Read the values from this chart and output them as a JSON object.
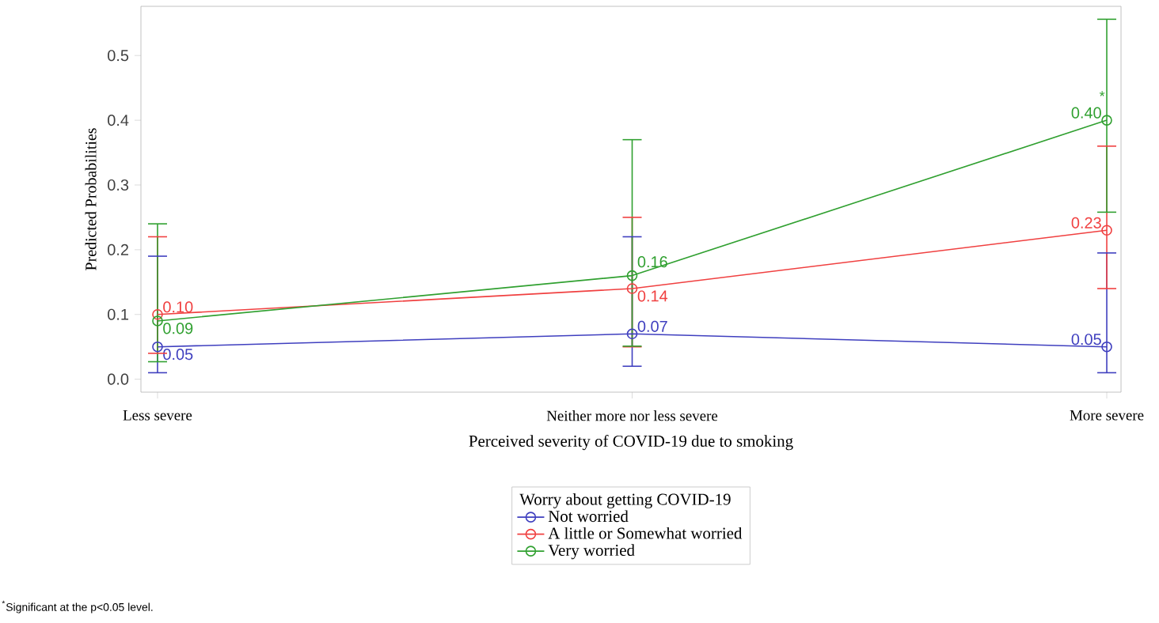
{
  "chart_data": {
    "type": "line",
    "categories": [
      "Less severe",
      "Neither more nor less severe",
      "More severe"
    ],
    "xlabel": "Perceived severity of COVID-19 due to smoking",
    "ylabel": "Predicted Probabilities",
    "legend_title": "Worry about getting COVID-19",
    "series": [
      {
        "name": "Not worried",
        "color": "#3f3fbf",
        "values": [
          0.05,
          0.07,
          0.05
        ],
        "value_labels": [
          "0.05",
          "0.07",
          "0.05"
        ],
        "errors": [
          [
            0.01,
            0.19
          ],
          [
            0.02,
            0.22
          ],
          [
            0.01,
            0.195
          ]
        ]
      },
      {
        "name": "A little or Somewhat worried",
        "color": "#f04040",
        "values": [
          0.1,
          0.14,
          0.23
        ],
        "value_labels": [
          "0.10",
          "0.14",
          "0.23"
        ],
        "errors": [
          [
            0.04,
            0.22
          ],
          [
            0.05,
            0.25
          ],
          [
            0.14,
            0.36
          ]
        ]
      },
      {
        "name": "Very worried",
        "color": "#30a030",
        "values": [
          0.09,
          0.16,
          0.4
        ],
        "value_labels": [
          "0.09",
          "0.16",
          "0.40"
        ],
        "errors": [
          [
            0.027,
            0.24
          ],
          [
            0.051,
            0.37
          ],
          [
            0.258,
            0.556
          ]
        ]
      }
    ],
    "ylim": [
      -0.02,
      0.576
    ],
    "yticks": [
      {
        "value": 0,
        "label": "0.0"
      },
      {
        "value": 0.1,
        "label": "0.1"
      },
      {
        "value": 0.2,
        "label": "0.2"
      },
      {
        "value": 0.3,
        "label": "0.3"
      },
      {
        "value": 0.4,
        "label": "0.4"
      },
      {
        "value": 0.5,
        "label": "0.5"
      }
    ],
    "marker": "circle",
    "line_style": "solid",
    "legend": "bottom",
    "grid": false,
    "annotations": [
      {
        "text": "*",
        "x": "More severe",
        "y": 0.4
      },
      "$^{*}$Significant at the p<0.05 level."
    ]
  }
}
